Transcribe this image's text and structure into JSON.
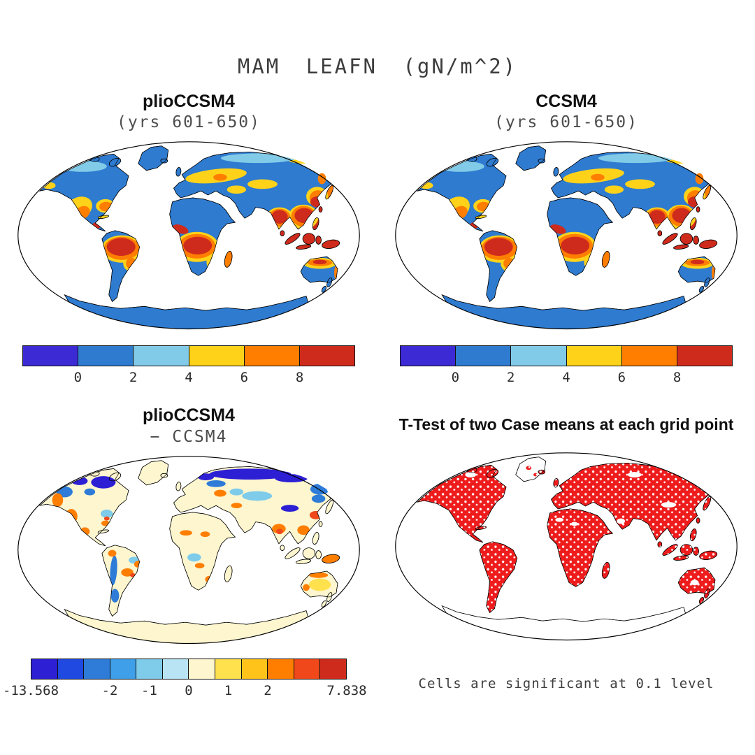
{
  "figure_title": "MAM LEAFN (gN/m^2)",
  "panels": {
    "top_left": {
      "title": "plioCCSM4",
      "subtitle": "(yrs 601-650)"
    },
    "top_right": {
      "title": "CCSM4",
      "subtitle": "(yrs 601-650)"
    },
    "bottom_left": {
      "title": "plioCCSM4",
      "subtitle": "− CCSM4"
    },
    "bottom_right": {
      "title": "T-Test of two Case means at each grid point",
      "caption": "Cells are significant at 0.1 level"
    }
  },
  "colorbars": {
    "top": {
      "colors": [
        "#3c2ad4",
        "#2e7bd0",
        "#82cbe8",
        "#ffd21a",
        "#ff7e00",
        "#cf2b1d"
      ],
      "tick_labels": [
        "0",
        "2",
        "4",
        "6",
        "8"
      ],
      "tick_positions_pct": [
        16.67,
        33.33,
        50,
        66.67,
        83.33
      ]
    },
    "diff": {
      "colors": [
        "#2c1fd4",
        "#1f49e0",
        "#2e7bd8",
        "#3f9fe8",
        "#7ecbea",
        "#b8e4f4",
        "#fdf6cf",
        "#ffe04d",
        "#ffc31a",
        "#ff7e00",
        "#f0481a",
        "#cf2b1d"
      ],
      "tick_labels": [
        "-13.568",
        "-2",
        "-1",
        "0",
        "1",
        "2",
        "7.838"
      ],
      "tick_positions_pct": [
        0,
        25,
        37.5,
        50,
        62.5,
        75,
        100
      ]
    }
  },
  "colors": {
    "significant_red": "#ee1c1c",
    "land_base_blue": "#2e7bd0",
    "diff_base_cream": "#fdf6cf",
    "ocean_white": "#ffffff",
    "coastline_black": "#000000"
  },
  "chart_data": [
    {
      "type": "heatmap",
      "panel": "top_left",
      "title": "plioCCSM4",
      "subtitle": "(yrs 601-650)",
      "variable": "MAM LEAFN",
      "units": "gN/m^2",
      "projection": "global world map (Robinson-style ellipse)",
      "colorbar_boundaries": [
        0,
        2,
        4,
        6,
        8
      ],
      "colorbar_colors": [
        "#3c2ad4",
        "#2e7bd0",
        "#82cbe8",
        "#ffd21a",
        "#ff7e00",
        "#cf2b1d"
      ],
      "pattern_summary": "Leaf nitrogen low (0-2, blue) over boreal North America, Siberia, Sahara, interior Australia, Greenland and Antarctica; high (>6, orange-red) over Amazon, Congo basin, West African coast, India, Southeast Asia, Indonesia, southern China, southeastern US, Central America and the northern Australia fringe; intermediate (2-6, light blue to yellow) over Europe, western US, Kazakh steppe, East China, southern Brazil and southeast Africa."
    },
    {
      "type": "heatmap",
      "panel": "top_right",
      "title": "CCSM4",
      "subtitle": "(yrs 601-650)",
      "variable": "MAM LEAFN",
      "units": "gN/m^2",
      "projection": "global world map (Robinson-style ellipse)",
      "colorbar_boundaries": [
        0,
        2,
        4,
        6,
        8
      ],
      "colorbar_colors": [
        "#3c2ad4",
        "#2e7bd0",
        "#82cbe8",
        "#ffd21a",
        "#ff7e00",
        "#cf2b1d"
      ],
      "pattern_summary": "Spatial pattern very similar to plioCCSM4: tropical maxima (Amazon, Congo, India, Southeast Asia, Indonesia) and low values across high latitudes and deserts."
    },
    {
      "type": "heatmap",
      "panel": "bottom_left",
      "title": "plioCCSM4 − CCSM4",
      "variable": "difference in MAM LEAFN",
      "units": "gN/m^2",
      "value_range": [
        -13.568,
        7.838
      ],
      "colorbar_boundaries": [
        -13.568,
        -2,
        -1,
        0,
        1,
        2,
        7.838
      ],
      "colorbar_colors": [
        "#2c1fd4",
        "#1f49e0",
        "#2e7bd8",
        "#3f9fe8",
        "#7ecbea",
        "#b8e4f4",
        "#fdf6cf",
        "#ffe04d",
        "#ffc31a",
        "#ff7e00",
        "#f0481a",
        "#cf2b1d"
      ],
      "pattern_summary": "Differences near zero (pale yellow) over most land; negative (blue, below -1) across northern Siberia, northeastern Canada, Scandinavia, Tibet and the Andes; positive (orange-red, above 1) over western North America, Mexico, Amazon fringes, the Sahel, India, southern China, Southeast Asia and northern Australia."
    },
    {
      "type": "heatmap",
      "panel": "bottom_right",
      "title": "T-Test of two Case means at each grid point",
      "caption": "Cells are significant at 0.1 level",
      "values": "binary significance mask",
      "pattern_summary": "Nearly all vegetated land grid cells shaded red (significant at the 0.1 level) with scattered non-significant white speckles; Greenland and Antarctica largely unshaded."
    }
  ]
}
